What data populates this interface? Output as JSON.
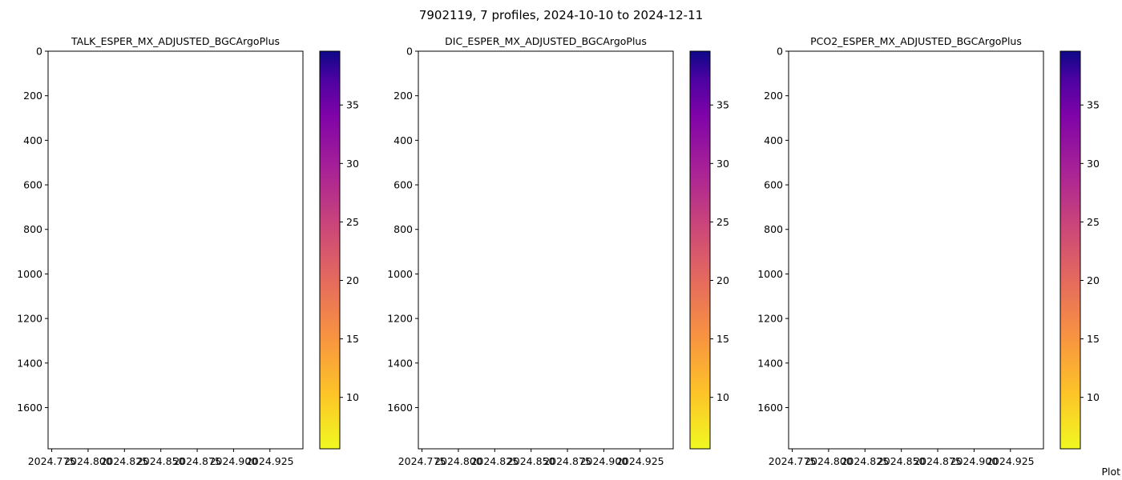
{
  "suptitle": "7902119, 7 profiles, 2024-10-10 to 2024-12-11",
  "footer_text": "Plot",
  "chart_data": [
    {
      "type": "heatmap",
      "title": "TALK_ESPER_MX_ADJUSTED_BGCArgoPlus",
      "xlabel": "",
      "ylabel": "",
      "xlim": [
        2024.7725,
        2024.9477
      ],
      "ylim": [
        1785,
        0
      ],
      "x_ticks": [
        2024.775,
        2024.8,
        2024.825,
        2024.85,
        2024.875,
        2024.9,
        2024.925
      ],
      "x_tick_labels": [
        "2024.775",
        "2024.800",
        "2024.825",
        "2024.850",
        "2024.875",
        "2024.900",
        "2024.925"
      ],
      "y_ticks": [
        0,
        200,
        400,
        600,
        800,
        1000,
        1200,
        1400,
        1600
      ],
      "y_tick_labels": [
        "0",
        "200",
        "400",
        "600",
        "800",
        "1000",
        "1200",
        "1400",
        "1600"
      ],
      "values": [],
      "colorbar": {
        "cmap": "plasma_r",
        "range": [
          5.6,
          39.6
        ],
        "ticks": [
          10,
          15,
          20,
          25,
          30,
          35
        ],
        "tick_labels": [
          "10",
          "15",
          "20",
          "25",
          "30",
          "35"
        ]
      }
    },
    {
      "type": "heatmap",
      "title": "DIC_ESPER_MX_ADJUSTED_BGCArgoPlus",
      "xlabel": "",
      "ylabel": "",
      "xlim": [
        2024.7725,
        2024.9477
      ],
      "ylim": [
        1785,
        0
      ],
      "x_ticks": [
        2024.775,
        2024.8,
        2024.825,
        2024.85,
        2024.875,
        2024.9,
        2024.925
      ],
      "x_tick_labels": [
        "2024.775",
        "2024.800",
        "2024.825",
        "2024.850",
        "2024.875",
        "2024.900",
        "2024.925"
      ],
      "y_ticks": [
        0,
        200,
        400,
        600,
        800,
        1000,
        1200,
        1400,
        1600
      ],
      "y_tick_labels": [
        "0",
        "200",
        "400",
        "600",
        "800",
        "1000",
        "1200",
        "1400",
        "1600"
      ],
      "values": [],
      "colorbar": {
        "cmap": "plasma_r",
        "range": [
          5.6,
          39.6
        ],
        "ticks": [
          10,
          15,
          20,
          25,
          30,
          35
        ],
        "tick_labels": [
          "10",
          "15",
          "20",
          "25",
          "30",
          "35"
        ]
      }
    },
    {
      "type": "heatmap",
      "title": "PCO2_ESPER_MX_ADJUSTED_BGCArgoPlus",
      "xlabel": "",
      "ylabel": "",
      "xlim": [
        2024.7725,
        2024.9477
      ],
      "ylim": [
        1785,
        0
      ],
      "x_ticks": [
        2024.775,
        2024.8,
        2024.825,
        2024.85,
        2024.875,
        2024.9,
        2024.925
      ],
      "x_tick_labels": [
        "2024.775",
        "2024.800",
        "2024.825",
        "2024.850",
        "2024.875",
        "2024.900",
        "2024.925"
      ],
      "y_ticks": [
        0,
        200,
        400,
        600,
        800,
        1000,
        1200,
        1400,
        1600
      ],
      "y_tick_labels": [
        "0",
        "200",
        "400",
        "600",
        "800",
        "1000",
        "1200",
        "1400",
        "1600"
      ],
      "values": [],
      "colorbar": {
        "cmap": "plasma_r",
        "range": [
          5.6,
          39.6
        ],
        "ticks": [
          10,
          15,
          20,
          25,
          30,
          35
        ],
        "tick_labels": [
          "10",
          "15",
          "20",
          "25",
          "30",
          "35"
        ]
      }
    }
  ]
}
